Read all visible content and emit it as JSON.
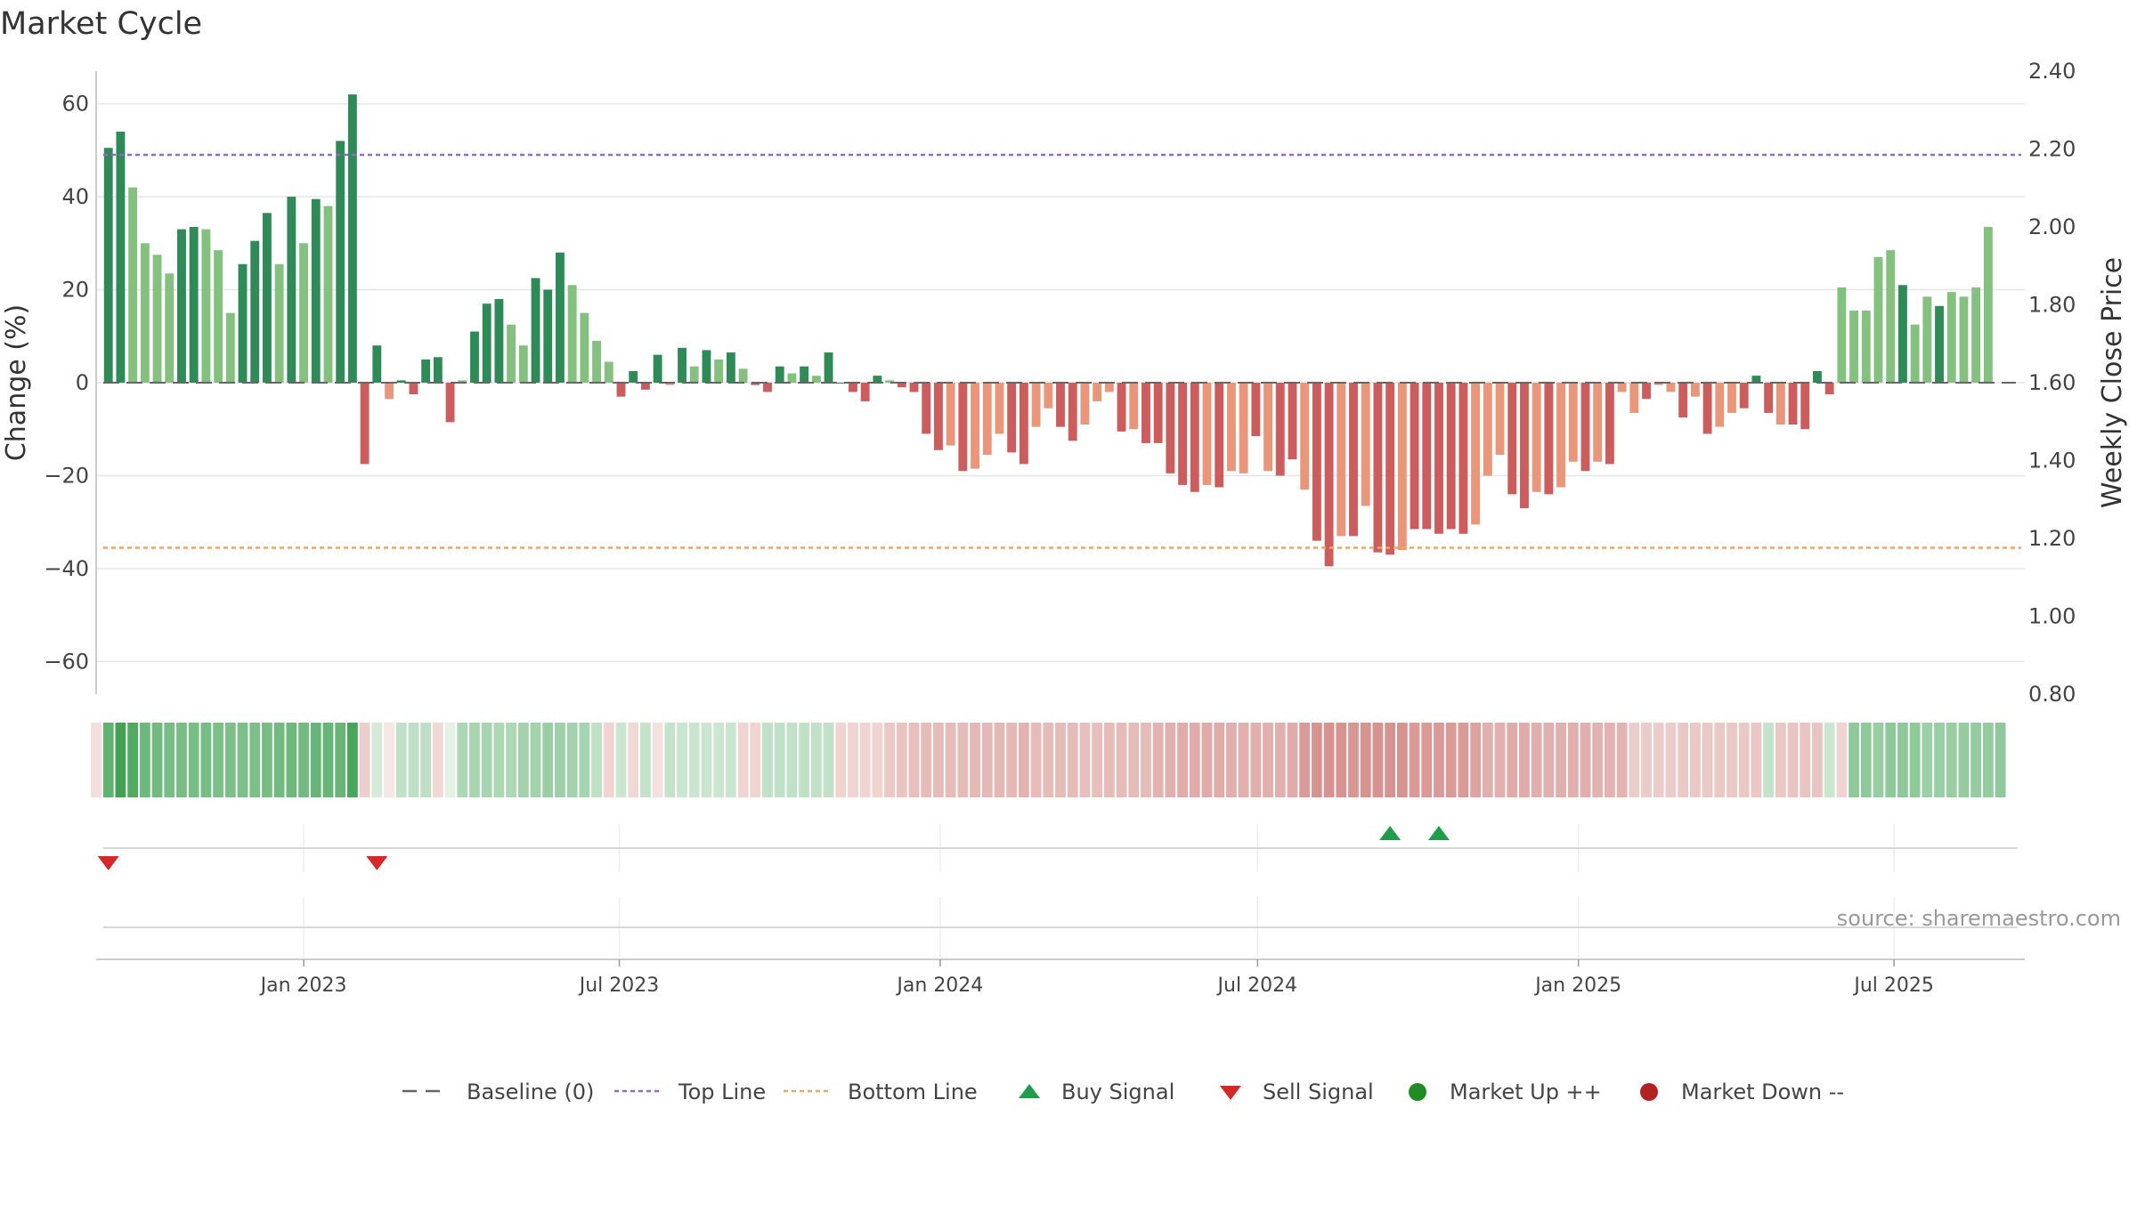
{
  "chart_data": {
    "type": "bar",
    "title": "Market Cycle",
    "source": "source: sharemaestro.com",
    "ylabel_left": "Change (%)",
    "ylabel_right": "Weekly Close Price",
    "y_left_range": [
      -67,
      67
    ],
    "y_left_ticks": [
      60,
      40,
      20,
      0,
      -20,
      -40,
      -60
    ],
    "y_left_tick_labels": [
      "60",
      "40",
      "20",
      "0",
      "−20",
      "−40",
      "−60"
    ],
    "y_right_range": [
      0.8,
      2.4
    ],
    "y_right_ticks": [
      "2.40",
      "2.20",
      "2.00",
      "1.80",
      "1.60",
      "1.40",
      "1.20",
      "1.00",
      "0.80"
    ],
    "x_range": [
      "2022-09-04",
      "2025-09-14"
    ],
    "x_ticks": [
      {
        "label": "Jan 2023",
        "date": "2023-01-01"
      },
      {
        "label": "Jul 2023",
        "date": "2023-07-01"
      },
      {
        "label": "Jan 2024",
        "date": "2024-01-01"
      },
      {
        "label": "Jul 2024",
        "date": "2024-07-01"
      },
      {
        "label": "Jan 2025",
        "date": "2025-01-01"
      },
      {
        "label": "Jul 2025",
        "date": "2025-07-01"
      }
    ],
    "top_line": 49,
    "bottom_line": -35.5,
    "baseline": 0,
    "first_week": "2022-09-11",
    "values": [
      50.5,
      54,
      42,
      30,
      27.5,
      23.5,
      33,
      33.5,
      33,
      28.5,
      15,
      25.5,
      30.5,
      36.5,
      25.5,
      40,
      30,
      39.5,
      38,
      52,
      62,
      -17.5,
      8,
      -3.5,
      0.5,
      -2.5,
      5,
      5.5,
      -8.5,
      0.5,
      11,
      17,
      18,
      12.5,
      8,
      22.5,
      20,
      28,
      21,
      15,
      9,
      4.5,
      -3,
      2.5,
      -1.5,
      6,
      -0.5,
      7.5,
      3.5,
      7,
      5,
      6.5,
      3,
      -0.5,
      -2,
      3.5,
      2,
      3.5,
      1.5,
      6.5,
      0,
      -2,
      -4,
      1.5,
      0.5,
      -1,
      -2,
      -11,
      -14.5,
      -13.5,
      -19,
      -18.5,
      -15.5,
      -11,
      -15,
      -17.5,
      -9.5,
      -5.5,
      -9.5,
      -12.5,
      -9,
      -4,
      -2,
      -10.5,
      -10,
      -13,
      -13,
      -19.5,
      -22,
      -23.5,
      -22,
      -22.5,
      -19,
      -19.5,
      -11.5,
      -19,
      -20,
      -16.5,
      -23,
      -34,
      -39.5,
      -33,
      -33,
      -26.5,
      -36.5,
      -37,
      -36,
      -31.5,
      -31.5,
      -32.5,
      -31.5,
      -32.5,
      -30.5,
      -20,
      -15.5,
      -24,
      -27,
      -23.5,
      -24,
      -22.5,
      -17,
      -19,
      -17,
      -17.5,
      -2,
      -6.5,
      -3.5,
      -0.5,
      -2,
      -7.5,
      -3,
      -11,
      -9.5,
      -6.5,
      -5.5,
      1.5,
      -6.5,
      -9,
      -9,
      -10,
      2.5,
      -2.5,
      20.5,
      15.5,
      15.5,
      27,
      28.5,
      21,
      12.5,
      18.5,
      16.5,
      19.5,
      18.5,
      20.5,
      33.5
    ],
    "bar_shades": [
      2,
      2,
      1,
      1,
      1,
      1,
      2,
      2,
      1,
      1,
      1,
      2,
      2,
      2,
      1,
      2,
      1,
      2,
      1,
      2,
      2,
      2,
      2,
      1,
      2,
      2,
      2,
      2,
      2,
      1,
      2,
      2,
      2,
      1,
      1,
      2,
      2,
      2,
      1,
      1,
      1,
      1,
      2,
      2,
      2,
      2,
      1,
      2,
      1,
      2,
      1,
      2,
      1,
      2,
      2,
      2,
      1,
      2,
      1,
      2,
      2,
      2,
      2,
      2,
      1,
      2,
      2,
      2,
      2,
      1,
      2,
      1,
      1,
      1,
      2,
      2,
      1,
      1,
      2,
      2,
      1,
      1,
      1,
      2,
      1,
      2,
      2,
      2,
      2,
      2,
      1,
      2,
      1,
      1,
      2,
      1,
      2,
      2,
      1,
      2,
      2,
      1,
      2,
      1,
      2,
      2,
      1,
      2,
      2,
      2,
      2,
      2,
      1,
      1,
      1,
      2,
      2,
      1,
      2,
      1,
      1,
      2,
      1,
      2,
      1,
      1,
      2,
      1,
      1,
      2,
      1,
      2,
      1,
      1,
      2,
      2,
      2,
      1,
      2,
      2,
      2,
      2,
      1,
      1,
      1,
      1,
      1,
      2,
      1,
      1,
      2,
      1,
      1,
      1
    ],
    "strip_first_week": "2022-09-04",
    "strip_values": [
      -7,
      55,
      68,
      62,
      50,
      48,
      46,
      46,
      46,
      46,
      44,
      44,
      44,
      44,
      46,
      48,
      50,
      48,
      52,
      52,
      52,
      65,
      -15,
      8,
      -3,
      16,
      17,
      17,
      -10,
      2,
      24,
      26,
      26,
      24,
      24,
      28,
      28,
      32,
      30,
      28,
      26,
      16,
      -12,
      12,
      -10,
      14,
      -6,
      14,
      12,
      12,
      12,
      12,
      12,
      -12,
      -12,
      16,
      16,
      16,
      16,
      16,
      16,
      -12,
      -12,
      -12,
      -12,
      -18,
      -20,
      -22,
      -24,
      -24,
      -24,
      -24,
      -26,
      -26,
      -26,
      -26,
      -28,
      -24,
      -24,
      -24,
      -24,
      -22,
      -22,
      -24,
      -24,
      -24,
      -24,
      -28,
      -30,
      -32,
      -32,
      -32,
      -32,
      -30,
      -30,
      -30,
      -30,
      -30,
      -32,
      -40,
      -44,
      -44,
      -44,
      -42,
      -44,
      -44,
      -44,
      -44,
      -40,
      -40,
      -40,
      -40,
      -40,
      -36,
      -30,
      -30,
      -32,
      -32,
      -30,
      -30,
      -30,
      -30,
      -30,
      -28,
      -28,
      -28,
      -16,
      -16,
      -16,
      -16,
      -18,
      -18,
      -18,
      -18,
      -18,
      -18,
      -18,
      14,
      -18,
      -20,
      -20,
      -20,
      12,
      -12,
      36,
      36,
      32,
      36,
      36,
      36,
      30,
      32,
      32,
      34,
      34,
      34,
      36
    ],
    "buy_signals": [
      "2024-09-15",
      "2024-10-13"
    ],
    "sell_signals": [
      "2022-09-11",
      "2023-02-12"
    ],
    "colors": {
      "up_dark": "#2e8b57",
      "up_light": "#85c17e",
      "down_dark": "#cd5c5c",
      "down_light": "#e9967a",
      "top_line": "#9966cc",
      "bottom_line": "#f4a460",
      "baseline": "#666666",
      "buy": "#1e9e4a",
      "sell": "#d62828",
      "market_up": "#228b22",
      "market_down": "#b22222"
    },
    "legend": [
      {
        "label": "Baseline (0)",
        "kind": "dash",
        "color": "#666666"
      },
      {
        "label": "Top Line",
        "kind": "dotted",
        "color": "#9966cc"
      },
      {
        "label": "Bottom Line",
        "kind": "dotted",
        "color": "#f4a460"
      },
      {
        "label": "Buy Signal",
        "kind": "tri-up",
        "color": "#1e9e4a"
      },
      {
        "label": "Sell Signal",
        "kind": "tri-down",
        "color": "#d62828"
      },
      {
        "label": "Market Up ++",
        "kind": "dot",
        "color": "#228b22"
      },
      {
        "label": "Market Down --",
        "kind": "dot",
        "color": "#b22222"
      }
    ],
    "legend_placement": "bottom-center"
  }
}
